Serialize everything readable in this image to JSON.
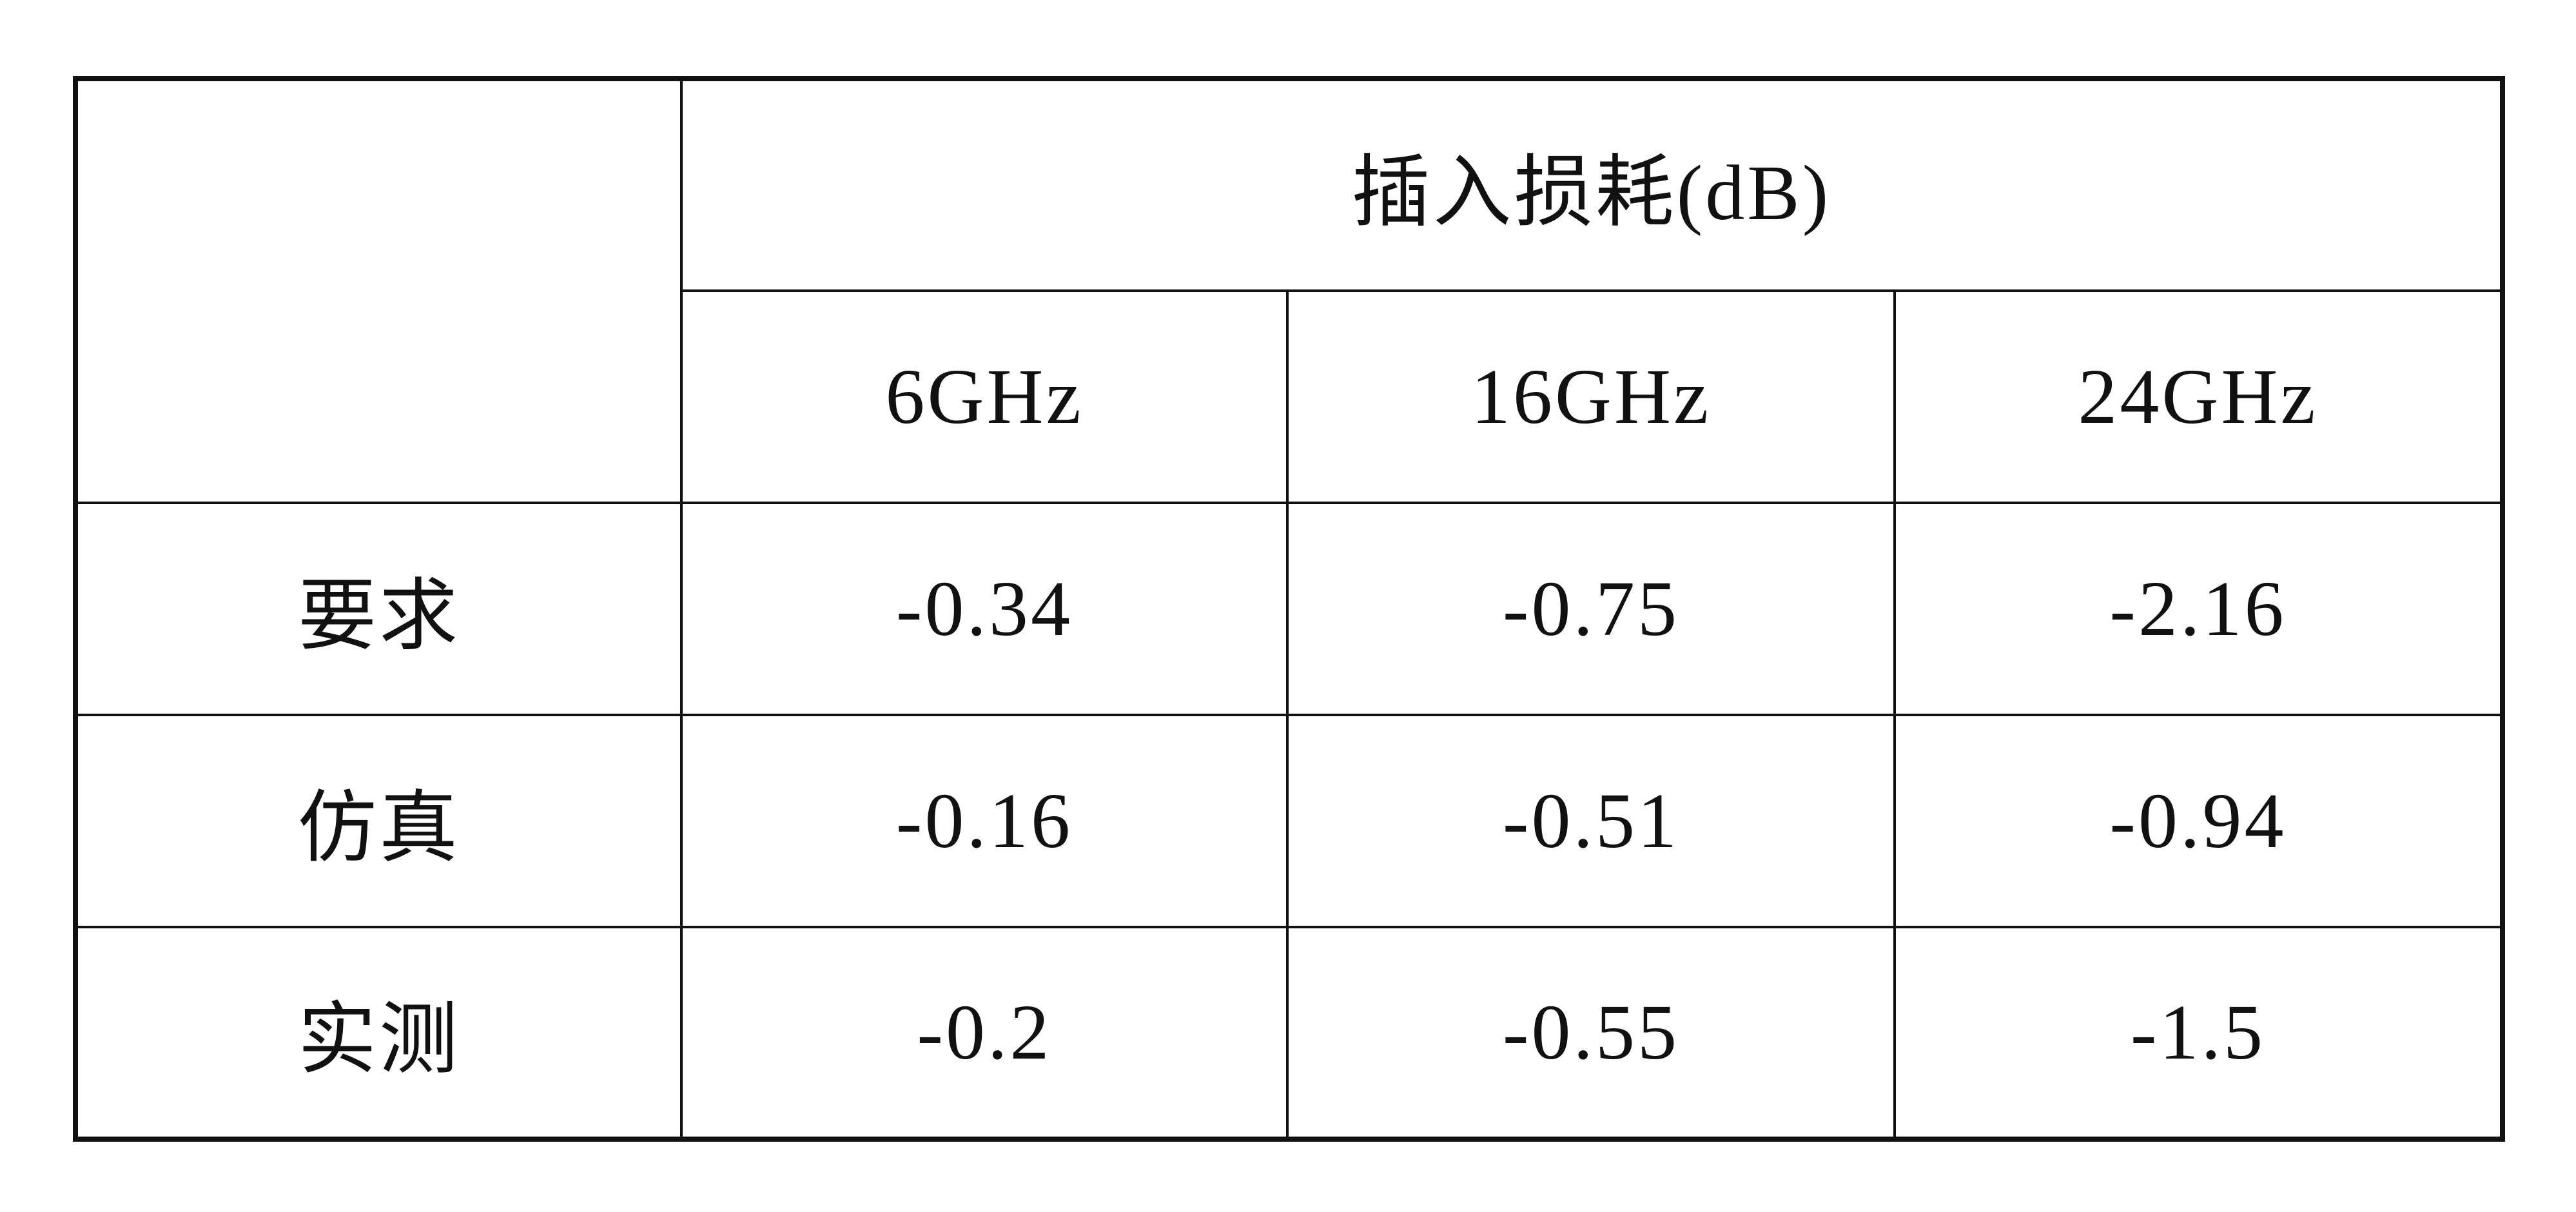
{
  "table": {
    "title": "插入损耗(dB)",
    "columns": [
      "6GHz",
      "16GHz",
      "24GHz"
    ],
    "rows": [
      [
        "要求",
        "-0.34",
        "-0.75",
        "-2.16"
      ],
      [
        "仿真",
        "-0.16",
        "-0.51",
        "-0.94"
      ],
      [
        "实测",
        "-0.2",
        "-0.55",
        "-1.5"
      ]
    ]
  }
}
